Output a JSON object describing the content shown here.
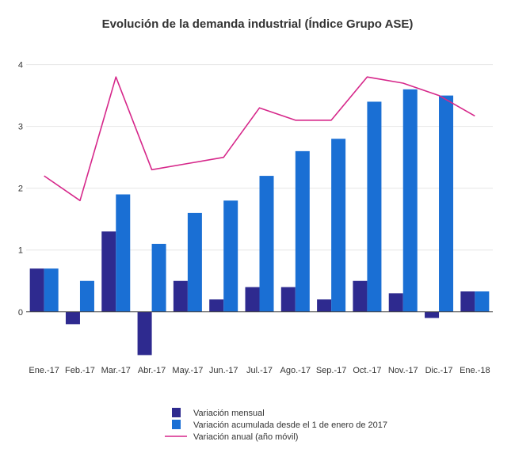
{
  "chart_data": {
    "type": "bar",
    "title": "Evolución de la demanda industrial (Índice Grupo ASE)",
    "xlabel": "",
    "ylabel": "",
    "categories": [
      "Ene.-17",
      "Feb.-17",
      "Mar.-17",
      "Abr.-17",
      "May.-17",
      "Jun.-17",
      "Jul.-17",
      "Ago.-17",
      "Sep.-17",
      "Oct.-17",
      "Nov.-17",
      "Dic.-17",
      "Ene.-18"
    ],
    "ylim": [
      -0.9,
      4.2
    ],
    "yticks": [
      0,
      1,
      2,
      3,
      4
    ],
    "grid": true,
    "legend_position": "bottom",
    "series": [
      {
        "name": "Variación mensual",
        "type": "bar",
        "color": "#2e2a8f",
        "values": [
          0.7,
          -0.2,
          1.3,
          -0.7,
          0.5,
          0.2,
          0.4,
          0.4,
          0.2,
          0.5,
          0.3,
          -0.1,
          0.33
        ]
      },
      {
        "name": "Variación acumulada desde el 1 de enero de 2017",
        "type": "bar",
        "color": "#1a6fd4",
        "values": [
          0.7,
          0.5,
          1.9,
          1.1,
          1.6,
          1.8,
          2.2,
          2.6,
          2.8,
          3.4,
          3.6,
          3.5,
          0.33
        ]
      },
      {
        "name": "Variación anual (año móvil)",
        "type": "line",
        "color": "#d6278a",
        "values": [
          2.2,
          1.8,
          3.8,
          2.3,
          2.4,
          2.5,
          3.3,
          3.1,
          3.1,
          3.8,
          3.7,
          3.5,
          3.17
        ]
      }
    ]
  }
}
